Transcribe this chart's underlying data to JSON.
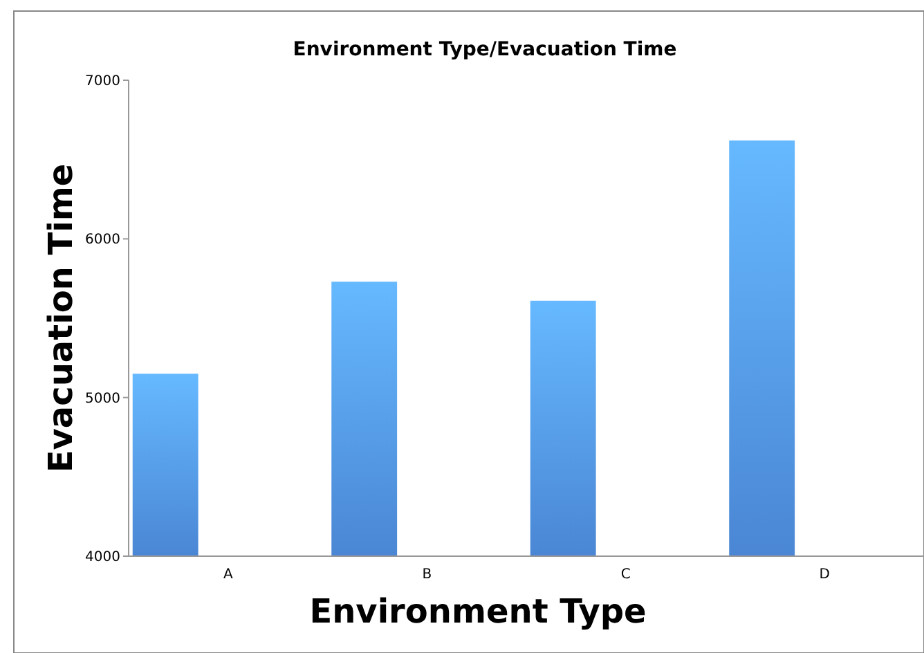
{
  "chart_data": {
    "type": "bar",
    "title": "Environment Type/Evacuation Time",
    "xlabel": "Environment Type",
    "ylabel": "Evacuation Time",
    "categories": [
      "A",
      "B",
      "C",
      "D"
    ],
    "values": [
      5150,
      5730,
      5610,
      6620
    ],
    "color": "#4a86d4",
    "ylim": [
      4000,
      7000
    ],
    "yticks": [
      4000,
      5000,
      6000,
      7000
    ],
    "grid": false
  }
}
